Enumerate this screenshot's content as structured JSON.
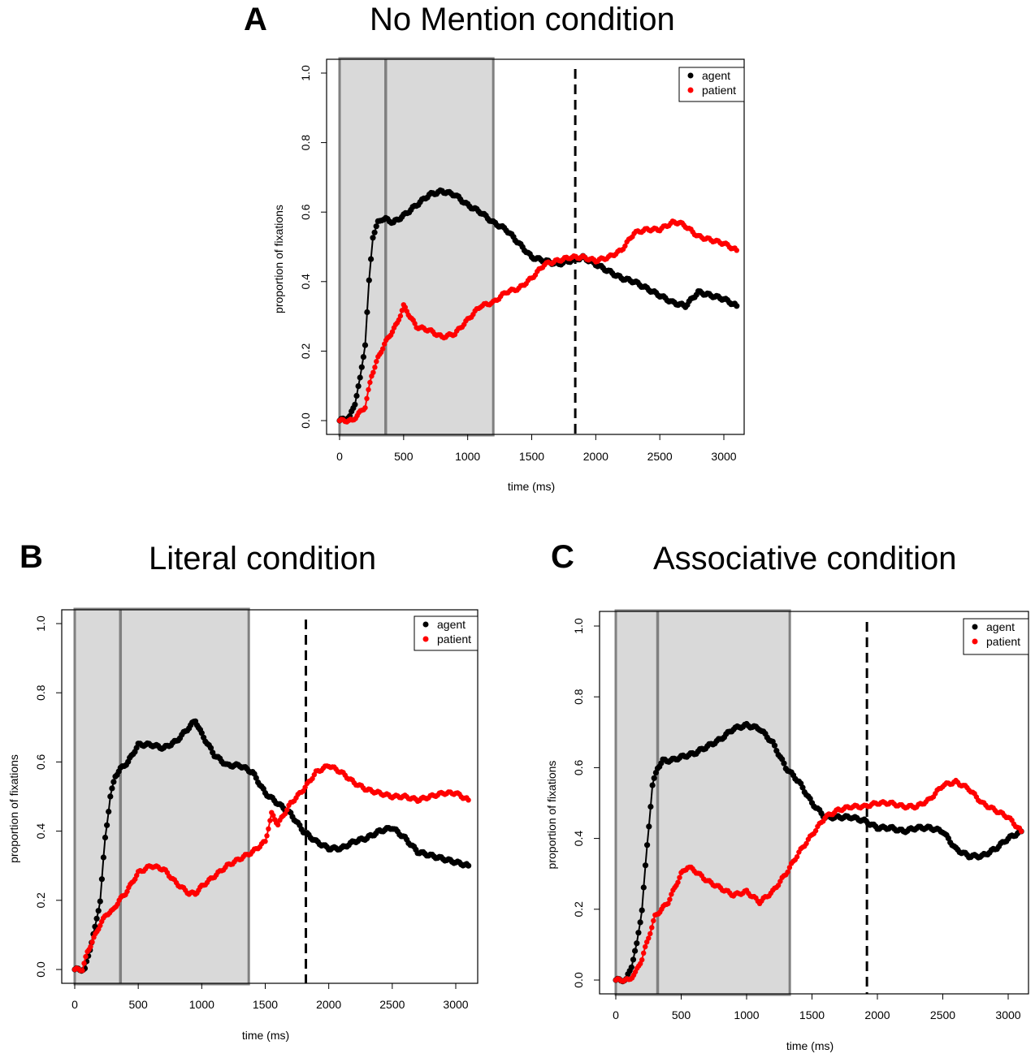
{
  "panels": [
    {
      "letter": "A",
      "title": "No Mention condition"
    },
    {
      "letter": "B",
      "title": "Literal condition"
    },
    {
      "letter": "C",
      "title": "Associative condition"
    }
  ],
  "colors": {
    "agent": "#000000",
    "patient": "#ff0000",
    "shade": "#d9d9d9",
    "shade_border": "#808080"
  },
  "chart_data": [
    {
      "type": "line",
      "title": "No Mention condition",
      "xlabel": "time (ms)",
      "ylabel": "proportion of fixations",
      "xlim": [
        0,
        3100
      ],
      "ylim": [
        0,
        1.0
      ],
      "xticks": [
        0,
        500,
        1000,
        1500,
        2000,
        2500,
        3000
      ],
      "yticks": [
        "0.0",
        "0.2",
        "0.4",
        "0.6",
        "0.8",
        "1.0"
      ],
      "shaded_region_ms": [
        0,
        1200
      ],
      "inner_line_ms": 360,
      "dashed_line_ms": 1840,
      "legend": [
        "agent",
        "patient"
      ],
      "series": [
        {
          "name": "agent",
          "x": [
            0,
            80,
            120,
            160,
            200,
            230,
            260,
            300,
            330,
            360,
            420,
            500,
            600,
            700,
            800,
            900,
            1000,
            1100,
            1200,
            1300,
            1400,
            1500,
            1600,
            1700,
            1800,
            1900,
            2000,
            2100,
            2200,
            2300,
            2400,
            2500,
            2600,
            2700,
            2800,
            2900,
            3000,
            3100
          ],
          "y": [
            0.0,
            0.01,
            0.05,
            0.12,
            0.22,
            0.4,
            0.53,
            0.57,
            0.58,
            0.58,
            0.57,
            0.59,
            0.62,
            0.65,
            0.66,
            0.65,
            0.62,
            0.6,
            0.57,
            0.55,
            0.51,
            0.47,
            0.46,
            0.45,
            0.46,
            0.47,
            0.45,
            0.43,
            0.41,
            0.4,
            0.38,
            0.36,
            0.34,
            0.33,
            0.37,
            0.36,
            0.35,
            0.33
          ]
        },
        {
          "name": "patient",
          "x": [
            0,
            100,
            150,
            200,
            250,
            300,
            350,
            400,
            450,
            500,
            550,
            600,
            700,
            800,
            900,
            1000,
            1100,
            1200,
            1300,
            1400,
            1500,
            1600,
            1700,
            1800,
            1900,
            2000,
            2100,
            2200,
            2300,
            2400,
            2500,
            2600,
            2650,
            2700,
            2800,
            2900,
            3000,
            3100
          ],
          "y": [
            0.0,
            0.0,
            0.02,
            0.04,
            0.13,
            0.18,
            0.22,
            0.25,
            0.28,
            0.33,
            0.3,
            0.27,
            0.26,
            0.24,
            0.25,
            0.29,
            0.33,
            0.34,
            0.37,
            0.38,
            0.41,
            0.45,
            0.46,
            0.47,
            0.47,
            0.46,
            0.47,
            0.49,
            0.54,
            0.55,
            0.55,
            0.57,
            0.57,
            0.56,
            0.53,
            0.52,
            0.51,
            0.49
          ]
        }
      ]
    },
    {
      "type": "line",
      "title": "Literal condition",
      "xlabel": "time (ms)",
      "ylabel": "proportion of fixations",
      "xlim": [
        0,
        3100
      ],
      "ylim": [
        0,
        1.0
      ],
      "xticks": [
        0,
        500,
        1000,
        1500,
        2000,
        2500,
        3000
      ],
      "yticks": [
        "0.0",
        "0.2",
        "0.4",
        "0.6",
        "0.8",
        "1.0"
      ],
      "shaded_region_ms": [
        0,
        1370
      ],
      "inner_line_ms": 360,
      "dashed_line_ms": 1820,
      "legend": [
        "agent",
        "patient"
      ],
      "series": [
        {
          "name": "agent",
          "x": [
            0,
            80,
            120,
            160,
            200,
            240,
            280,
            320,
            360,
            420,
            500,
            600,
            700,
            800,
            900,
            950,
            1000,
            1100,
            1200,
            1300,
            1400,
            1500,
            1600,
            1700,
            1800,
            1900,
            2000,
            2100,
            2200,
            2300,
            2400,
            2500,
            2600,
            2700,
            2800,
            2900,
            3000,
            3100
          ],
          "y": [
            0.0,
            0.0,
            0.06,
            0.12,
            0.2,
            0.38,
            0.5,
            0.56,
            0.58,
            0.6,
            0.65,
            0.65,
            0.64,
            0.66,
            0.7,
            0.72,
            0.68,
            0.62,
            0.59,
            0.59,
            0.57,
            0.51,
            0.48,
            0.45,
            0.4,
            0.37,
            0.35,
            0.35,
            0.37,
            0.38,
            0.4,
            0.41,
            0.38,
            0.34,
            0.33,
            0.32,
            0.31,
            0.3
          ]
        },
        {
          "name": "patient",
          "x": [
            0,
            60,
            100,
            150,
            200,
            250,
            300,
            350,
            400,
            450,
            500,
            600,
            700,
            800,
            900,
            950,
            1000,
            1100,
            1200,
            1300,
            1400,
            1500,
            1550,
            1600,
            1700,
            1800,
            1900,
            2000,
            2100,
            2200,
            2300,
            2400,
            2500,
            2600,
            2700,
            2800,
            2900,
            3000,
            3100
          ],
          "y": [
            0.0,
            0.0,
            0.05,
            0.09,
            0.13,
            0.16,
            0.17,
            0.2,
            0.22,
            0.25,
            0.28,
            0.3,
            0.29,
            0.25,
            0.22,
            0.22,
            0.24,
            0.27,
            0.3,
            0.32,
            0.34,
            0.37,
            0.45,
            0.42,
            0.48,
            0.52,
            0.57,
            0.59,
            0.57,
            0.54,
            0.52,
            0.51,
            0.5,
            0.5,
            0.49,
            0.5,
            0.51,
            0.51,
            0.49
          ]
        }
      ]
    },
    {
      "type": "line",
      "title": "Associative condition",
      "xlabel": "time (ms)",
      "ylabel": "proportion of fixations",
      "xlim": [
        0,
        3100
      ],
      "ylim": [
        0,
        1.0
      ],
      "xticks": [
        0,
        500,
        1000,
        1500,
        2000,
        2500,
        3000
      ],
      "yticks": [
        "0.0",
        "0.2",
        "0.4",
        "0.6",
        "0.8",
        "1.0"
      ],
      "shaded_region_ms": [
        0,
        1330
      ],
      "inner_line_ms": 320,
      "dashed_line_ms": 1920,
      "legend": [
        "agent",
        "patient"
      ],
      "series": [
        {
          "name": "agent",
          "x": [
            0,
            80,
            120,
            160,
            200,
            240,
            280,
            320,
            360,
            420,
            500,
            600,
            700,
            800,
            900,
            1000,
            1100,
            1200,
            1300,
            1400,
            1500,
            1600,
            1700,
            1800,
            1900,
            2000,
            2100,
            2200,
            2300,
            2400,
            2500,
            2600,
            2700,
            2800,
            2900,
            3000,
            3100
          ],
          "y": [
            0.0,
            0.0,
            0.04,
            0.1,
            0.2,
            0.38,
            0.55,
            0.6,
            0.62,
            0.62,
            0.63,
            0.64,
            0.66,
            0.68,
            0.71,
            0.72,
            0.71,
            0.67,
            0.6,
            0.56,
            0.5,
            0.46,
            0.46,
            0.46,
            0.45,
            0.43,
            0.43,
            0.42,
            0.43,
            0.43,
            0.42,
            0.37,
            0.35,
            0.35,
            0.37,
            0.4,
            0.42
          ]
        },
        {
          "name": "patient",
          "x": [
            0,
            100,
            150,
            200,
            250,
            300,
            350,
            400,
            450,
            500,
            550,
            600,
            700,
            800,
            900,
            1000,
            1100,
            1200,
            1300,
            1400,
            1500,
            1600,
            1700,
            1800,
            1900,
            2000,
            2100,
            2200,
            2300,
            2400,
            2500,
            2600,
            2700,
            2800,
            2900,
            3000,
            3100
          ],
          "y": [
            0.0,
            0.0,
            0.02,
            0.06,
            0.12,
            0.18,
            0.2,
            0.22,
            0.26,
            0.3,
            0.32,
            0.31,
            0.28,
            0.26,
            0.24,
            0.25,
            0.22,
            0.25,
            0.3,
            0.36,
            0.41,
            0.46,
            0.48,
            0.49,
            0.49,
            0.5,
            0.5,
            0.49,
            0.49,
            0.51,
            0.55,
            0.56,
            0.54,
            0.5,
            0.48,
            0.46,
            0.42
          ]
        }
      ]
    }
  ]
}
